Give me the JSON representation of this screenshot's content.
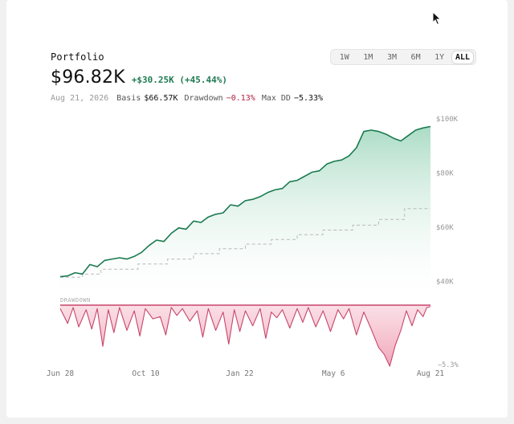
{
  "header": {
    "title": "Portfolio",
    "value": "$96.82K",
    "change": "+$30.25K (+45.44%)",
    "date": "Aug 21, 2026",
    "basis_label": "Basis",
    "basis_value": "$66.57K",
    "drawdown_label": "Drawdown",
    "drawdown_value": "−0.13%",
    "maxdd_label": "Max DD",
    "maxdd_value": "−5.33%"
  },
  "ranges": [
    "1W",
    "1M",
    "3M",
    "6M",
    "1Y",
    "ALL"
  ],
  "active_range": "ALL",
  "colors": {
    "value_line": "#1a7a4f",
    "value_fill": "#a9d9c3",
    "basis_line": "#b9b9b9",
    "drawdown_line": "#c8456a",
    "drawdown_fill": "#f3b6c6",
    "axis_text": "#999999"
  },
  "chart_data": [
    {
      "type": "area",
      "name": "value",
      "y_axis_labels": [
        "$100K",
        "$80K",
        "$60K",
        "$40K"
      ],
      "y_ticks": [
        100,
        80,
        60,
        40
      ],
      "ylim": [
        34,
        102
      ],
      "x_ticks": [
        "Jun 28",
        "Oct 10",
        "Jan 22",
        "May 6",
        "Aug 21"
      ],
      "x_tick_positions": [
        0,
        0.231,
        0.485,
        0.738,
        1.0
      ],
      "series": [
        {
          "name": "Portfolio",
          "x": [
            0,
            0.02,
            0.04,
            0.06,
            0.08,
            0.1,
            0.12,
            0.14,
            0.16,
            0.18,
            0.2,
            0.22,
            0.24,
            0.26,
            0.28,
            0.3,
            0.32,
            0.34,
            0.36,
            0.38,
            0.4,
            0.42,
            0.44,
            0.46,
            0.48,
            0.5,
            0.52,
            0.54,
            0.56,
            0.58,
            0.6,
            0.62,
            0.64,
            0.66,
            0.68,
            0.7,
            0.72,
            0.74,
            0.76,
            0.78,
            0.8,
            0.82,
            0.84,
            0.86,
            0.88,
            0.9,
            0.92,
            0.94,
            0.96,
            0.98,
            1.0
          ],
          "values": [
            41.5,
            41.8,
            43.0,
            42.5,
            46.0,
            45.2,
            47.5,
            48.0,
            48.5,
            48.0,
            49.0,
            50.5,
            53.0,
            55.0,
            54.5,
            57.5,
            59.5,
            59.0,
            62.0,
            61.5,
            63.5,
            64.5,
            65.0,
            68.0,
            67.5,
            69.5,
            70.0,
            71.0,
            72.5,
            73.5,
            74.0,
            76.5,
            77.0,
            78.5,
            80.0,
            80.5,
            83.0,
            84.0,
            84.5,
            86.0,
            89.0,
            95.0,
            95.5,
            95.0,
            94.0,
            92.5,
            91.5,
            93.5,
            95.5,
            96.3,
            96.82
          ]
        },
        {
          "name": "Basis",
          "x": [
            0,
            0.06,
            0.06,
            0.11,
            0.11,
            0.21,
            0.21,
            0.29,
            0.29,
            0.36,
            0.36,
            0.43,
            0.43,
            0.5,
            0.5,
            0.57,
            0.57,
            0.64,
            0.64,
            0.71,
            0.71,
            0.79,
            0.79,
            0.86,
            0.86,
            0.93,
            0.93,
            1.0
          ],
          "values": [
            41.3,
            41.3,
            42.5,
            42.5,
            44.3,
            44.3,
            46.2,
            46.2,
            48.0,
            48.0,
            50.0,
            50.0,
            51.8,
            51.8,
            53.5,
            53.5,
            55.2,
            55.2,
            57.0,
            57.0,
            58.7,
            58.7,
            60.5,
            60.5,
            62.6,
            62.6,
            66.57,
            66.57
          ]
        }
      ]
    },
    {
      "type": "area",
      "name": "drawdown",
      "title": "DRAWDOWN",
      "y_axis_labels": [
        "−5.3%"
      ],
      "ylim": [
        -5.33,
        0
      ],
      "series": [
        {
          "name": "Drawdown",
          "x": [
            0,
            0.02,
            0.035,
            0.05,
            0.07,
            0.085,
            0.1,
            0.115,
            0.13,
            0.145,
            0.16,
            0.18,
            0.2,
            0.215,
            0.23,
            0.25,
            0.27,
            0.285,
            0.3,
            0.315,
            0.33,
            0.35,
            0.37,
            0.385,
            0.4,
            0.42,
            0.44,
            0.455,
            0.47,
            0.485,
            0.5,
            0.52,
            0.54,
            0.555,
            0.57,
            0.585,
            0.6,
            0.62,
            0.64,
            0.655,
            0.67,
            0.69,
            0.71,
            0.73,
            0.75,
            0.765,
            0.78,
            0.8,
            0.82,
            0.84,
            0.86,
            0.875,
            0.89,
            0.905,
            0.92,
            0.935,
            0.95,
            0.965,
            0.98,
            0.99,
            1.0
          ],
          "values": [
            -0.3,
            -1.6,
            -0.2,
            -1.9,
            -0.4,
            -2.1,
            -0.3,
            -3.6,
            -0.4,
            -2.4,
            -0.2,
            -2.2,
            -0.5,
            -2.7,
            -0.3,
            -1.2,
            -1.0,
            -2.6,
            -0.2,
            -0.9,
            -0.3,
            -1.4,
            -0.5,
            -2.8,
            -0.3,
            -2.2,
            -0.6,
            -3.4,
            -0.4,
            -2.3,
            -0.5,
            -1.8,
            -0.3,
            -2.9,
            -0.6,
            -1.1,
            -0.4,
            -2.0,
            -0.3,
            -1.5,
            -0.2,
            -1.9,
            -0.5,
            -2.3,
            -0.4,
            -1.2,
            -0.3,
            -2.6,
            -0.6,
            -2.1,
            -3.7,
            -4.3,
            -5.33,
            -3.5,
            -2.2,
            -0.5,
            -1.8,
            -0.4,
            -1.0,
            -0.2,
            -0.13
          ]
        }
      ]
    }
  ]
}
